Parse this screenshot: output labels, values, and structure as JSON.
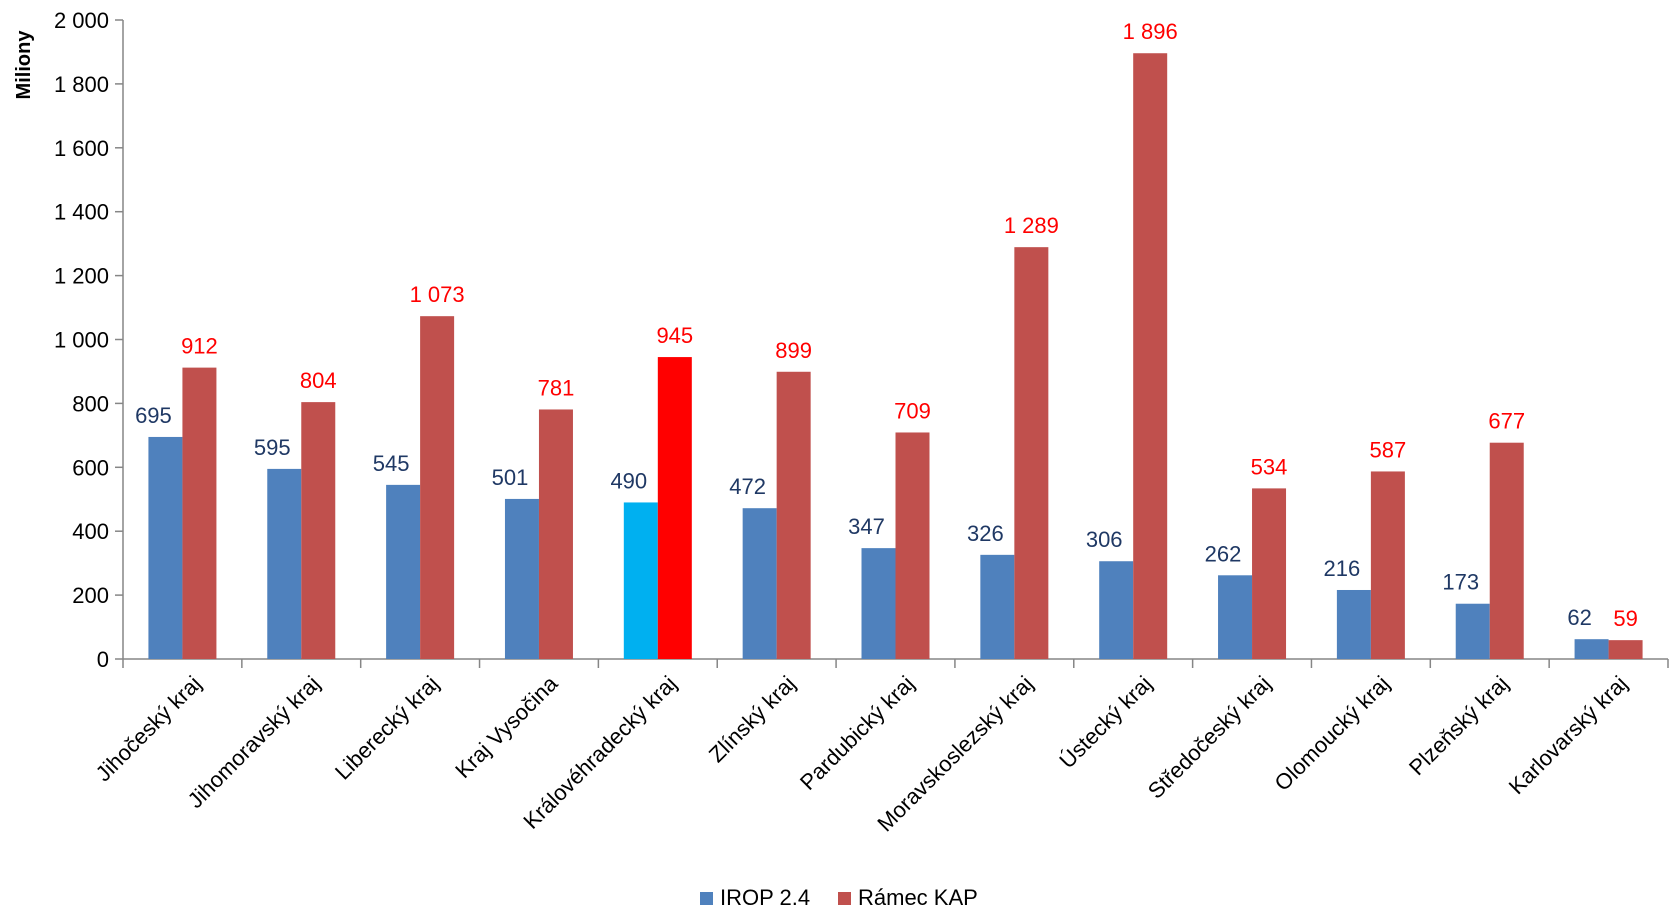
{
  "chart_data": {
    "type": "bar",
    "title": "",
    "xlabel": "",
    "ylabel": "Miliony",
    "ylim": [
      0,
      2000
    ],
    "yticks": [
      "0",
      "200",
      "400",
      "600",
      "800",
      "1 000",
      "1 200",
      "1 400",
      "1 600",
      "1 800",
      "2 000"
    ],
    "yticks_values": [
      0,
      200,
      400,
      600,
      800,
      1000,
      1200,
      1400,
      1600,
      1800,
      2000
    ],
    "grid": false,
    "legend_position": "bottom",
    "categories": [
      "Jihočeský kraj",
      "Jihomoravský kraj",
      "Liberecký kraj",
      "Kraj Vysočina",
      "Královéhradecký kraj",
      "Zlínský kraj",
      "Pardubický kraj",
      "Moravskoslezský kraj",
      "Ústecký kraj",
      "Středočeský kraj",
      "Olomoucký kraj",
      "Plzeňský kraj",
      "Karlovarský kraj"
    ],
    "series": [
      {
        "name": "IROP 2.4",
        "color": "#4f81bd",
        "label_color": "#1f3864",
        "values": [
          695,
          595,
          545,
          501,
          490,
          472,
          347,
          326,
          306,
          262,
          216,
          173,
          62
        ],
        "labels": [
          "695",
          "595",
          "545",
          "501",
          "490",
          "472",
          "347",
          "326",
          "306",
          "262",
          "216",
          "173",
          "62"
        ]
      },
      {
        "name": "Rámec KAP",
        "color": "#c0504d",
        "label_color": "#ff0000",
        "values": [
          912,
          804,
          1073,
          781,
          945,
          899,
          709,
          1289,
          1896,
          534,
          587,
          677,
          59
        ],
        "labels": [
          "912",
          "804",
          "1 073",
          "781",
          "945",
          "899",
          "709",
          "1 289",
          "1 896",
          "534",
          "587",
          "677",
          "59"
        ]
      }
    ],
    "highlight": {
      "category": "Královéhradecký kraj",
      "colors": [
        "#00b0f0",
        "#ff0000"
      ]
    }
  }
}
